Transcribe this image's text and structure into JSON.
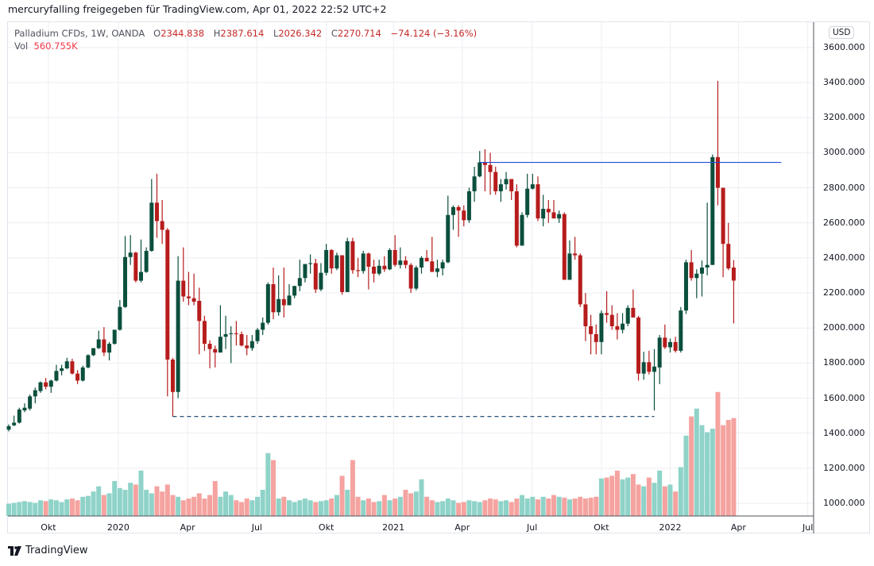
{
  "header": {
    "attribution": "mercuryfalling freigegeben für TradingView.com, Apr 01, 2022 22:52 UTC+2"
  },
  "legend": {
    "symbol": "Palladium CFDs, 1W, OANDA",
    "open_label": "O",
    "open": "2344.838",
    "high_label": "H",
    "high": "2387.614",
    "low_label": "L",
    "low": "2026.342",
    "close_label": "C",
    "close": "2270.714",
    "change": "−74.124 (−3.16%)",
    "vol_label": "Vol",
    "vol": "560.755K"
  },
  "currency": "USD",
  "footer": {
    "brand": "TradingView"
  },
  "colors": {
    "up": "#0b4f3d",
    "down": "#b71c1c",
    "vol_up": "#8fd3c8",
    "vol_down": "#f5a3a0",
    "hline": "#1e4fd8",
    "dashed": "#0d3b66"
  },
  "chart_data": {
    "type": "candlestick",
    "title": "Palladium CFDs, 1W, OANDA",
    "ylim": [
      900,
      3700
    ],
    "y_ticks": [
      "3600.000",
      "3400.000",
      "3200.000",
      "3000.000",
      "2800.000",
      "2600.000",
      "2400.000",
      "2200.000",
      "2000.000",
      "1800.000",
      "1600.000",
      "1400.000",
      "1200.000",
      "1000.000"
    ],
    "x_ticks": [
      {
        "label": "Okt",
        "week": 7.5
      },
      {
        "label": "2020",
        "week": 20.7
      },
      {
        "label": "Apr",
        "week": 33.8
      },
      {
        "label": "Jul",
        "week": 46.9
      },
      {
        "label": "Okt",
        "week": 60
      },
      {
        "label": "2021",
        "week": 72.7
      },
      {
        "label": "Apr",
        "week": 85.7
      },
      {
        "label": "Jul",
        "week": 98.9
      },
      {
        "label": "Okt",
        "week": 112
      },
      {
        "label": "2022",
        "week": 125
      },
      {
        "label": "Apr",
        "week": 137.9
      },
      {
        "label": "Jul",
        "week": 151
      }
    ],
    "ohlc": [
      [
        1420,
        1450,
        1410,
        1440
      ],
      [
        1445,
        1500,
        1440,
        1460
      ],
      [
        1460,
        1545,
        1455,
        1535
      ],
      [
        1530,
        1570,
        1520,
        1545
      ],
      [
        1540,
        1620,
        1530,
        1610
      ],
      [
        1610,
        1660,
        1570,
        1645
      ],
      [
        1640,
        1695,
        1630,
        1690
      ],
      [
        1690,
        1715,
        1650,
        1665
      ],
      [
        1665,
        1705,
        1630,
        1700
      ],
      [
        1700,
        1790,
        1695,
        1755
      ],
      [
        1755,
        1790,
        1730,
        1770
      ],
      [
        1770,
        1830,
        1765,
        1810
      ],
      [
        1810,
        1825,
        1735,
        1740
      ],
      [
        1740,
        1760,
        1680,
        1700
      ],
      [
        1700,
        1785,
        1695,
        1775
      ],
      [
        1775,
        1850,
        1770,
        1845
      ],
      [
        1845,
        1885,
        1840,
        1885
      ],
      [
        1885,
        1985,
        1880,
        1935
      ],
      [
        1935,
        2005,
        1840,
        1860
      ],
      [
        1860,
        1920,
        1815,
        1910
      ],
      [
        1910,
        1990,
        1905,
        1990
      ],
      [
        1990,
        2160,
        1985,
        2120
      ],
      [
        2120,
        2525,
        2115,
        2405
      ],
      [
        2405,
        2530,
        2360,
        2430
      ],
      [
        2430,
        2435,
        2260,
        2270
      ],
      [
        2270,
        2505,
        2260,
        2320
      ],
      [
        2320,
        2460,
        2315,
        2440
      ],
      [
        2440,
        2850,
        2435,
        2715
      ],
      [
        2715,
        2880,
        2515,
        2610
      ],
      [
        2610,
        2730,
        2480,
        2560
      ],
      [
        2560,
        2570,
        1610,
        1820
      ],
      [
        1820,
        1830,
        1495,
        1635
      ],
      [
        1635,
        2410,
        1600,
        2270
      ],
      [
        2270,
        2460,
        2150,
        2180
      ],
      [
        2180,
        2320,
        2130,
        2170
      ],
      [
        2170,
        2310,
        2130,
        2150
      ],
      [
        2155,
        2230,
        1850,
        2040
      ],
      [
        2040,
        2070,
        1870,
        1910
      ],
      [
        1910,
        1930,
        1770,
        1880
      ],
      [
        1880,
        1900,
        1775,
        1860
      ],
      [
        1860,
        2130,
        1860,
        1950
      ],
      [
        1950,
        2070,
        1880,
        1965
      ],
      [
        1965,
        2010,
        1800,
        1970
      ],
      [
        1970,
        2040,
        1900,
        1965
      ],
      [
        1965,
        1980,
        1895,
        1900
      ],
      [
        1900,
        1960,
        1845,
        1885
      ],
      [
        1885,
        1960,
        1870,
        1925
      ],
      [
        1925,
        2000,
        1910,
        1990
      ],
      [
        1990,
        2060,
        1960,
        2030
      ],
      [
        2030,
        2260,
        2020,
        2250
      ],
      [
        2250,
        2345,
        2050,
        2090
      ],
      [
        2090,
        2300,
        2070,
        2165
      ],
      [
        2165,
        2345,
        2060,
        2130
      ],
      [
        2130,
        2250,
        2130,
        2185
      ],
      [
        2185,
        2240,
        2170,
        2240
      ],
      [
        2240,
        2390,
        2210,
        2285
      ],
      [
        2285,
        2365,
        2260,
        2365
      ],
      [
        2365,
        2420,
        2310,
        2370
      ],
      [
        2370,
        2395,
        2200,
        2220
      ],
      [
        2220,
        2370,
        2210,
        2315
      ],
      [
        2315,
        2480,
        2300,
        2445
      ],
      [
        2445,
        2450,
        2310,
        2340
      ],
      [
        2340,
        2430,
        2330,
        2415
      ],
      [
        2415,
        2415,
        2190,
        2205
      ],
      [
        2205,
        2515,
        2205,
        2495
      ],
      [
        2495,
        2515,
        2310,
        2330
      ],
      [
        2330,
        2400,
        2290,
        2325
      ],
      [
        2325,
        2440,
        2310,
        2425
      ],
      [
        2425,
        2430,
        2220,
        2350
      ],
      [
        2350,
        2390,
        2260,
        2310
      ],
      [
        2310,
        2390,
        2300,
        2355
      ],
      [
        2355,
        2410,
        2320,
        2335
      ],
      [
        2335,
        2455,
        2330,
        2445
      ],
      [
        2445,
        2530,
        2350,
        2360
      ],
      [
        2360,
        2460,
        2340,
        2385
      ],
      [
        2385,
        2410,
        2340,
        2360
      ],
      [
        2360,
        2370,
        2200,
        2225
      ],
      [
        2225,
        2355,
        2215,
        2345
      ],
      [
        2345,
        2410,
        2310,
        2400
      ],
      [
        2400,
        2445,
        2380,
        2380
      ],
      [
        2380,
        2520,
        2320,
        2320
      ],
      [
        2320,
        2390,
        2290,
        2340
      ],
      [
        2340,
        2390,
        2300,
        2375
      ],
      [
        2375,
        2755,
        2370,
        2645
      ],
      [
        2645,
        2700,
        2560,
        2690
      ],
      [
        2690,
        2700,
        2520,
        2670
      ],
      [
        2670,
        2700,
        2580,
        2615
      ],
      [
        2615,
        2800,
        2600,
        2780
      ],
      [
        2780,
        2920,
        2720,
        2865
      ],
      [
        2865,
        3010,
        2860,
        2945
      ],
      [
        2945,
        3020,
        2780,
        2930
      ],
      [
        2930,
        3000,
        2760,
        2890
      ],
      [
        2890,
        2920,
        2760,
        2780
      ],
      [
        2780,
        2850,
        2720,
        2820
      ],
      [
        2820,
        2890,
        2790,
        2850
      ],
      [
        2850,
        2850,
        2730,
        2780
      ],
      [
        2780,
        2820,
        2460,
        2470
      ],
      [
        2470,
        2660,
        2470,
        2645
      ],
      [
        2645,
        2880,
        2630,
        2795
      ],
      [
        2795,
        2880,
        2790,
        2820
      ],
      [
        2820,
        2865,
        2610,
        2625
      ],
      [
        2625,
        2760,
        2580,
        2680
      ],
      [
        2680,
        2730,
        2600,
        2660
      ],
      [
        2660,
        2730,
        2625,
        2625
      ],
      [
        2625,
        2670,
        2600,
        2650
      ],
      [
        2650,
        2660,
        2275,
        2275
      ],
      [
        2275,
        2500,
        2275,
        2425
      ],
      [
        2425,
        2520,
        2390,
        2415
      ],
      [
        2415,
        2425,
        2120,
        2135
      ],
      [
        2135,
        2200,
        1925,
        2010
      ],
      [
        2010,
        2075,
        1850,
        1965
      ],
      [
        1965,
        2020,
        1850,
        1920
      ],
      [
        1920,
        2100,
        1850,
        2085
      ],
      [
        2085,
        2210,
        2030,
        2075
      ],
      [
        2075,
        2130,
        1990,
        2010
      ],
      [
        2010,
        2085,
        1935,
        1990
      ],
      [
        1990,
        2085,
        1970,
        2025
      ],
      [
        2025,
        2130,
        2010,
        2115
      ],
      [
        2115,
        2220,
        2060,
        2060
      ],
      [
        2060,
        2070,
        1700,
        1740
      ],
      [
        1740,
        1865,
        1705,
        1805
      ],
      [
        1805,
        1870,
        1735,
        1750
      ],
      [
        1750,
        1880,
        1530,
        1780
      ],
      [
        1775,
        1960,
        1680,
        1945
      ],
      [
        1945,
        2020,
        1880,
        1890
      ],
      [
        1890,
        1940,
        1860,
        1920
      ],
      [
        1920,
        1950,
        1860,
        1870
      ],
      [
        1870,
        2120,
        1860,
        2100
      ],
      [
        2100,
        2390,
        2080,
        2375
      ],
      [
        2375,
        2445,
        2270,
        2285
      ],
      [
        2285,
        2335,
        2170,
        2310
      ],
      [
        2310,
        2385,
        2180,
        2345
      ],
      [
        2345,
        2715,
        2300,
        2360
      ],
      [
        2360,
        2990,
        2360,
        2975
      ],
      [
        2975,
        3410,
        2700,
        2800
      ],
      [
        2800,
        2800,
        2290,
        2480
      ],
      [
        2480,
        2600,
        2330,
        2340
      ],
      [
        2344.838,
        2387.614,
        2026.342,
        2270.714
      ]
    ],
    "volume_k": [
      70,
      75,
      80,
      85,
      80,
      75,
      90,
      85,
      95,
      90,
      80,
      95,
      100,
      90,
      110,
      115,
      140,
      170,
      120,
      130,
      200,
      160,
      150,
      190,
      180,
      260,
      150,
      130,
      170,
      140,
      180,
      120,
      110,
      90,
      100,
      110,
      130,
      100,
      120,
      200,
      110,
      140,
      120,
      90,
      80,
      100,
      90,
      110,
      150,
      360,
      320,
      100,
      110,
      90,
      80,
      90,
      100,
      90,
      80,
      85,
      90,
      100,
      120,
      230,
      150,
      320,
      110,
      90,
      100,
      80,
      85,
      120,
      90,
      100,
      110,
      150,
      130,
      140,
      210,
      110,
      90,
      80,
      85,
      100,
      90,
      75,
      80,
      90,
      85,
      80,
      90,
      100,
      95,
      85,
      90,
      80,
      100,
      120,
      100,
      110,
      95,
      110,
      100,
      120,
      110,
      105,
      95,
      100,
      110,
      100,
      105,
      110,
      215,
      220,
      230,
      260,
      210,
      220,
      240,
      180,
      170,
      220,
      190,
      260,
      170,
      180,
      140,
      280,
      460,
      570,
      615,
      520,
      480,
      500,
      710,
      520,
      550,
      560.755
    ],
    "annotations": [
      {
        "type": "horizontal-line",
        "price": 2945,
        "from_week": 89,
        "to_week": 146,
        "color": "blue"
      },
      {
        "type": "dashed-line",
        "price": 1495,
        "from_week": 31,
        "to_week": 122
      }
    ]
  }
}
